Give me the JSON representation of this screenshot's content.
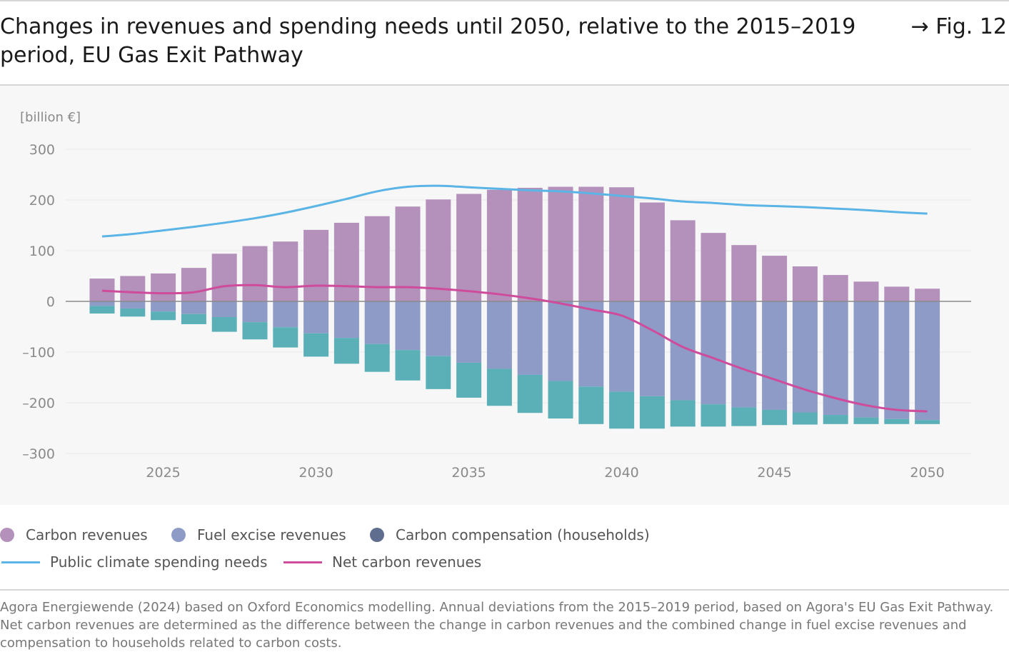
{
  "header": {
    "title": "Changes in revenues and spending needs until 2050, relative to the 2015–2019 period, EU Gas Exit Pathway",
    "fig_ref": "→ Fig. 12"
  },
  "legend": {
    "carbon_revenues": "Carbon revenues",
    "fuel_excise": "Fuel excise revenues",
    "carbon_compensation": "Carbon compensation (households)",
    "public_spending": "Public climate spending needs",
    "net_carbon": "Net carbon revenues"
  },
  "source": "Agora Energiewende (2024) based on Oxford Economics modelling. Annual deviations from the 2015–2019 period, based on Agora's EU Gas Exit Pathway. Net carbon revenues are determined as the difference between the change in carbon revenues and the combined change in fuel excise revenues and compensation to households related to carbon costs.",
  "colors": {
    "carbon_revenues": "#b391bb",
    "fuel_excise": "#8e9bc6",
    "carbon_compensation": "#5bb0b7",
    "carbon_compensation_legend": "#5f6d8e",
    "public_spending": "#5ab4e5",
    "net_carbon": "#cf4b9b"
  },
  "chart_data": {
    "type": "bar",
    "unit_label": "[billion €]",
    "ylim": [
      -300,
      300
    ],
    "yticks": [
      300,
      200,
      100,
      0,
      -100,
      -200,
      -300
    ],
    "ytick_labels": [
      "300",
      "200",
      "100",
      "0",
      "–100",
      "–200",
      "–300"
    ],
    "xticks": [
      2025,
      2030,
      2035,
      2040,
      2045,
      2050
    ],
    "categories": [
      2023,
      2024,
      2025,
      2026,
      2027,
      2028,
      2029,
      2030,
      2031,
      2032,
      2033,
      2034,
      2035,
      2036,
      2037,
      2038,
      2039,
      2040,
      2041,
      2042,
      2043,
      2044,
      2045,
      2046,
      2047,
      2048,
      2049,
      2050
    ],
    "series": [
      {
        "name": "Carbon revenues",
        "kind": "bar",
        "values": [
          45,
          50,
          55,
          66,
          94,
          109,
          118,
          141,
          155,
          168,
          187,
          201,
          212,
          220,
          224,
          226,
          226,
          225,
          195,
          160,
          135,
          111,
          90,
          69,
          52,
          39,
          29,
          25
        ]
      },
      {
        "name": "Fuel excise revenues",
        "kind": "bar",
        "values": [
          -9,
          -14,
          -20,
          -25,
          -31,
          -41,
          -51,
          -63,
          -72,
          -84,
          -96,
          -108,
          -121,
          -133,
          -145,
          -157,
          -168,
          -178,
          -187,
          -195,
          -203,
          -209,
          -214,
          -219,
          -224,
          -229,
          -232,
          -234
        ]
      },
      {
        "name": "Carbon compensation (households)",
        "kind": "bar",
        "values": [
          -15,
          -16,
          -17,
          -20,
          -29,
          -34,
          -40,
          -46,
          -51,
          -55,
          -60,
          -65,
          -69,
          -73,
          -75,
          -74,
          -74,
          -73,
          -64,
          -52,
          -44,
          -37,
          -30,
          -24,
          -18,
          -13,
          -10,
          -8
        ]
      },
      {
        "name": "Public climate spending needs",
        "kind": "line",
        "values": [
          128,
          133,
          140,
          147,
          155,
          164,
          175,
          188,
          202,
          217,
          226,
          228,
          225,
          222,
          219,
          217,
          213,
          208,
          203,
          197,
          194,
          190,
          188,
          186,
          183,
          180,
          176,
          173
        ]
      },
      {
        "name": "Net carbon revenues",
        "kind": "line",
        "values": [
          21,
          18,
          16,
          18,
          30,
          32,
          28,
          31,
          30,
          28,
          28,
          25,
          20,
          14,
          6,
          -4,
          -16,
          -28,
          -57,
          -90,
          -112,
          -134,
          -154,
          -174,
          -191,
          -205,
          -214,
          -217
        ]
      }
    ]
  }
}
